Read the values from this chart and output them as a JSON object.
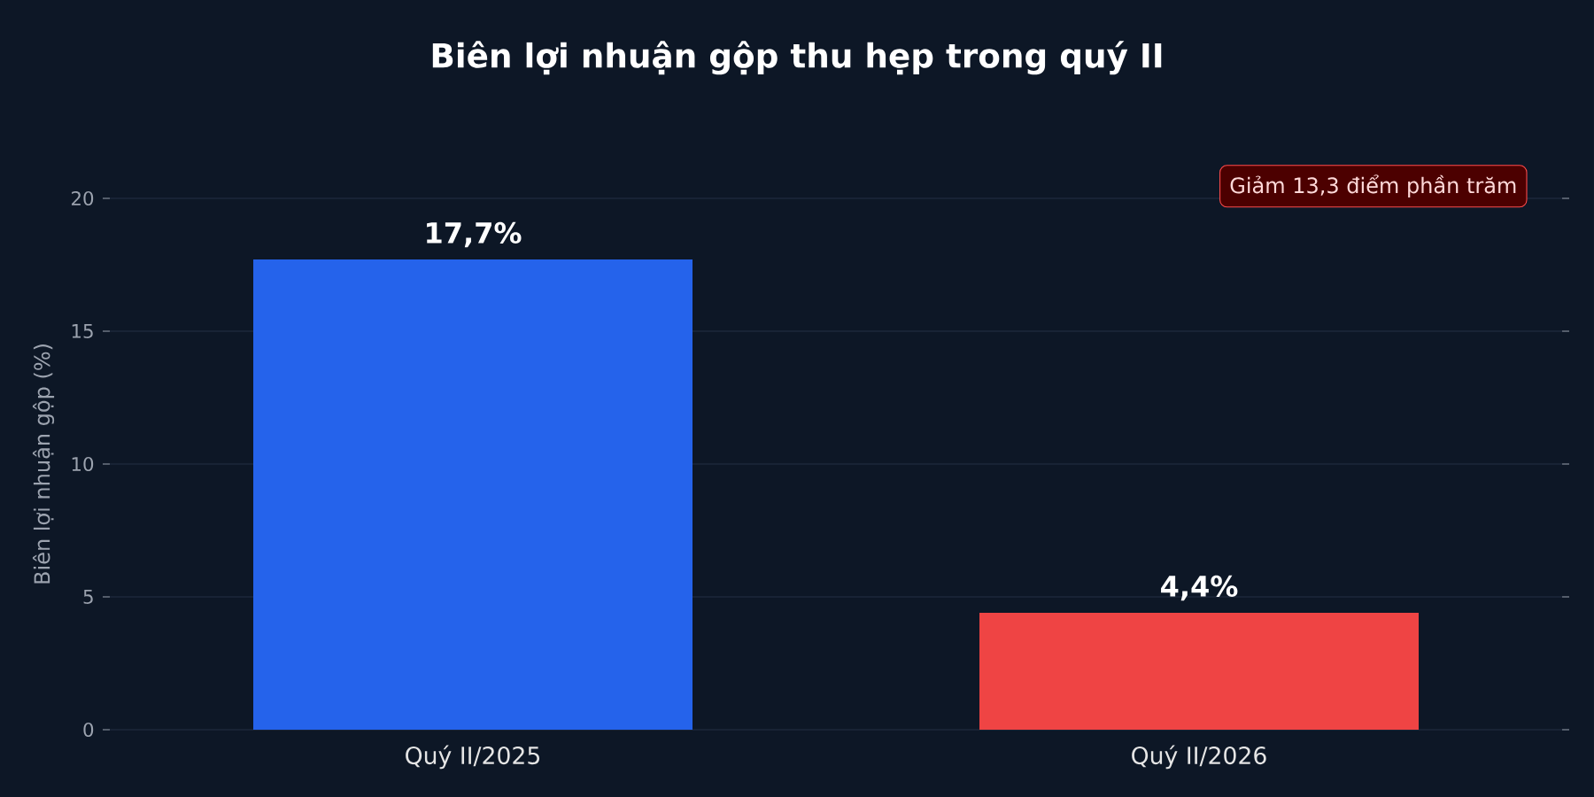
{
  "chart_data": {
    "type": "bar",
    "title": "Biên lợi nhuận gộp thu hẹp trong quý II",
    "ylabel": "Biên lợi nhuận gộp (%)",
    "categories": [
      "Quý II/2025",
      "Quý II/2026"
    ],
    "values": [
      17.7,
      4.4
    ],
    "colors": [
      "#2563eb",
      "#ef4444"
    ],
    "value_labels": [
      "17,7%",
      "4,4%"
    ],
    "ylim": [
      0,
      20
    ],
    "yticks": [
      0,
      5,
      10,
      15,
      20
    ],
    "grid": "y",
    "annotations": [
      "Giảm 13,3 điểm phần trăm"
    ]
  }
}
